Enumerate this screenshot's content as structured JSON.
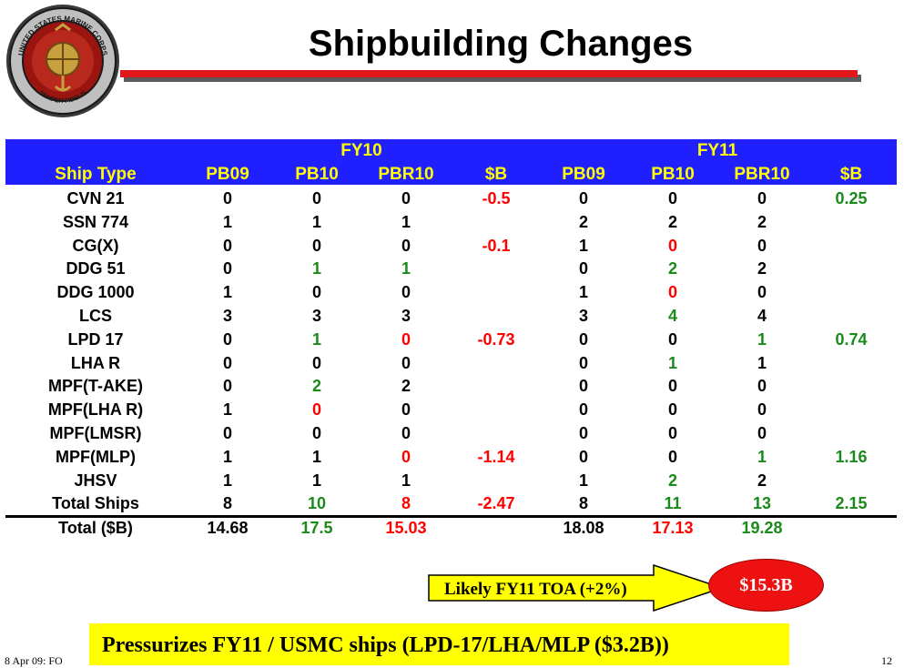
{
  "seal": {
    "top_text": "UNITED STATES MARINE CORPS",
    "bottom_text": "SEMPER FIDELIS"
  },
  "title": "Shipbuilding Changes",
  "table": {
    "group_headers": [
      "FY10",
      "FY11"
    ],
    "column_headers": [
      "Ship Type",
      "PB09",
      "PB10",
      "PBR10",
      "$B",
      "PB09",
      "PB10",
      "PBR10",
      "$B"
    ],
    "rows": [
      {
        "label": "CVN 21",
        "cells": [
          [
            "0",
            "black"
          ],
          [
            "0",
            "black"
          ],
          [
            "0",
            "black"
          ],
          [
            "-0.5",
            "red"
          ],
          [
            "0",
            "black"
          ],
          [
            "0",
            "black"
          ],
          [
            "0",
            "black"
          ],
          [
            "0.25",
            "green"
          ]
        ]
      },
      {
        "label": "SSN 774",
        "cells": [
          [
            "1",
            "black"
          ],
          [
            "1",
            "black"
          ],
          [
            "1",
            "black"
          ],
          [
            "",
            ""
          ],
          [
            "2",
            "black"
          ],
          [
            "2",
            "black"
          ],
          [
            "2",
            "black"
          ],
          [
            "",
            ""
          ]
        ]
      },
      {
        "label": "CG(X)",
        "cells": [
          [
            "0",
            "black"
          ],
          [
            "0",
            "black"
          ],
          [
            "0",
            "black"
          ],
          [
            "-0.1",
            "red"
          ],
          [
            "1",
            "black"
          ],
          [
            "0",
            "red"
          ],
          [
            "0",
            "black"
          ],
          [
            "",
            ""
          ]
        ]
      },
      {
        "label": "DDG 51",
        "cells": [
          [
            "0",
            "black"
          ],
          [
            "1",
            "green"
          ],
          [
            "1",
            "green"
          ],
          [
            "",
            ""
          ],
          [
            "0",
            "black"
          ],
          [
            "2",
            "green"
          ],
          [
            "2",
            "black"
          ],
          [
            "",
            ""
          ]
        ]
      },
      {
        "label": "DDG 1000",
        "cells": [
          [
            "1",
            "black"
          ],
          [
            "0",
            "black"
          ],
          [
            "0",
            "black"
          ],
          [
            "",
            ""
          ],
          [
            "1",
            "black"
          ],
          [
            "0",
            "red"
          ],
          [
            "0",
            "black"
          ],
          [
            "",
            ""
          ]
        ]
      },
      {
        "label": "LCS",
        "cells": [
          [
            "3",
            "black"
          ],
          [
            "3",
            "black"
          ],
          [
            "3",
            "black"
          ],
          [
            "",
            ""
          ],
          [
            "3",
            "black"
          ],
          [
            "4",
            "green"
          ],
          [
            "4",
            "black"
          ],
          [
            "",
            ""
          ]
        ]
      },
      {
        "label": "LPD 17",
        "cells": [
          [
            "0",
            "black"
          ],
          [
            "1",
            "green"
          ],
          [
            "0",
            "red"
          ],
          [
            "-0.73",
            "red"
          ],
          [
            "0",
            "black"
          ],
          [
            "0",
            "black"
          ],
          [
            "1",
            "green"
          ],
          [
            "0.74",
            "green"
          ]
        ]
      },
      {
        "label": "LHA R",
        "cells": [
          [
            "0",
            "black"
          ],
          [
            "0",
            "black"
          ],
          [
            "0",
            "black"
          ],
          [
            "",
            ""
          ],
          [
            "0",
            "black"
          ],
          [
            "1",
            "green"
          ],
          [
            "1",
            "black"
          ],
          [
            "",
            ""
          ]
        ]
      },
      {
        "label": "MPF(T-AKE)",
        "cells": [
          [
            "0",
            "black"
          ],
          [
            "2",
            "green"
          ],
          [
            "2",
            "black"
          ],
          [
            "",
            ""
          ],
          [
            "0",
            "black"
          ],
          [
            "0",
            "black"
          ],
          [
            "0",
            "black"
          ],
          [
            "",
            ""
          ]
        ]
      },
      {
        "label": "MPF(LHA R)",
        "cells": [
          [
            "1",
            "black"
          ],
          [
            "0",
            "red"
          ],
          [
            "0",
            "black"
          ],
          [
            "",
            ""
          ],
          [
            "0",
            "black"
          ],
          [
            "0",
            "black"
          ],
          [
            "0",
            "black"
          ],
          [
            "",
            ""
          ]
        ]
      },
      {
        "label": "MPF(LMSR)",
        "cells": [
          [
            "0",
            "black"
          ],
          [
            "0",
            "black"
          ],
          [
            "0",
            "black"
          ],
          [
            "",
            ""
          ],
          [
            "0",
            "black"
          ],
          [
            "0",
            "black"
          ],
          [
            "0",
            "black"
          ],
          [
            "",
            ""
          ]
        ]
      },
      {
        "label": "MPF(MLP)",
        "cells": [
          [
            "1",
            "black"
          ],
          [
            "1",
            "black"
          ],
          [
            "0",
            "red"
          ],
          [
            "-1.14",
            "red"
          ],
          [
            "0",
            "black"
          ],
          [
            "0",
            "black"
          ],
          [
            "1",
            "green"
          ],
          [
            "1.16",
            "green"
          ]
        ]
      },
      {
        "label": "JHSV",
        "cells": [
          [
            "1",
            "black"
          ],
          [
            "1",
            "black"
          ],
          [
            "1",
            "black"
          ],
          [
            "",
            ""
          ],
          [
            "1",
            "black"
          ],
          [
            "2",
            "green"
          ],
          [
            "2",
            "black"
          ],
          [
            "",
            ""
          ]
        ]
      },
      {
        "label": "Total Ships",
        "cells": [
          [
            "8",
            "black"
          ],
          [
            "10",
            "green"
          ],
          [
            "8",
            "red"
          ],
          [
            "-2.47",
            "red"
          ],
          [
            "8",
            "black"
          ],
          [
            "11",
            "green"
          ],
          [
            "13",
            "green"
          ],
          [
            "2.15",
            "green"
          ]
        ]
      }
    ],
    "total_row": {
      "label": "Total ($B)",
      "cells": [
        [
          "14.68",
          "black"
        ],
        [
          "17.5",
          "green"
        ],
        [
          "15.03",
          "red"
        ],
        [
          "",
          ""
        ],
        [
          "18.08",
          "black"
        ],
        [
          "17.13",
          "red"
        ],
        [
          "19.28",
          "green"
        ],
        [
          "",
          ""
        ]
      ]
    }
  },
  "callout": {
    "arrow_text": "Likely FY11 TOA (+2%)",
    "oval_text": "$15.3B"
  },
  "banner": "Pressurizes FY11 / USMC ships (LPD-17/LHA/MLP ($3.2B))",
  "footer": {
    "left": "8 Apr 09:  FO",
    "right": "12"
  },
  "colors": {
    "header_band": "#1f1fff",
    "header_text": "#ffff00",
    "green": "#1a8a1a",
    "red": "#ff0000",
    "banner": "#ffff00",
    "oval": "#ee1111",
    "rule": "#e3181c"
  }
}
